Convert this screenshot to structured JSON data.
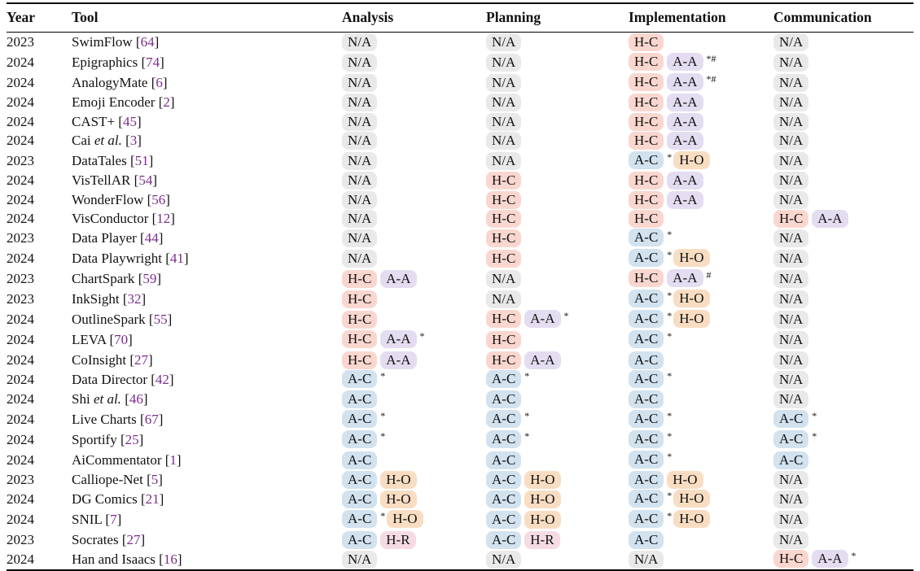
{
  "table": {
    "columns": [
      "Year",
      "Tool",
      "Analysis",
      "Planning",
      "Implementation",
      "Communication"
    ],
    "badge_colors": {
      "N/A": "#e9e9e9",
      "H-C": "#f9d7cf",
      "A-A": "#e4dcf0",
      "A-C": "#d2e2ee",
      "H-O": "#f8ddc2",
      "H-R": "#f6dbe4"
    },
    "citation_color": "#7c2d8e",
    "rows": [
      {
        "year": "2023",
        "tool": {
          "text": "SwimFlow",
          "italic": "",
          "cite": "64"
        },
        "analysis": [
          "N/A"
        ],
        "planning": [
          "N/A"
        ],
        "implementation": [
          "H-C"
        ],
        "communication": [
          "N/A"
        ]
      },
      {
        "year": "2024",
        "tool": {
          "text": "Epigraphics",
          "italic": "",
          "cite": "74"
        },
        "analysis": [
          "N/A"
        ],
        "planning": [
          "N/A"
        ],
        "implementation": [
          "H-C",
          "A-A",
          "*#"
        ],
        "communication": [
          "N/A"
        ]
      },
      {
        "year": "2024",
        "tool": {
          "text": "AnalogyMate",
          "italic": "",
          "cite": "6"
        },
        "analysis": [
          "N/A"
        ],
        "planning": [
          "N/A"
        ],
        "implementation": [
          "H-C",
          "A-A",
          "*#"
        ],
        "communication": [
          "N/A"
        ]
      },
      {
        "year": "2024",
        "tool": {
          "text": "Emoji Encoder",
          "italic": "",
          "cite": "2"
        },
        "analysis": [
          "N/A"
        ],
        "planning": [
          "N/A"
        ],
        "implementation": [
          "H-C",
          "A-A"
        ],
        "communication": [
          "N/A"
        ]
      },
      {
        "year": "2024",
        "tool": {
          "text": "CAST+",
          "italic": "",
          "cite": "45"
        },
        "analysis": [
          "N/A"
        ],
        "planning": [
          "N/A"
        ],
        "implementation": [
          "H-C",
          "A-A"
        ],
        "communication": [
          "N/A"
        ]
      },
      {
        "year": "2024",
        "tool": {
          "text": "Cai ",
          "italic": "et al.",
          "cite": "3"
        },
        "analysis": [
          "N/A"
        ],
        "planning": [
          "N/A"
        ],
        "implementation": [
          "H-C",
          "A-A"
        ],
        "communication": [
          "N/A"
        ]
      },
      {
        "year": "2023",
        "tool": {
          "text": "DataTales",
          "italic": "",
          "cite": "51"
        },
        "analysis": [
          "N/A"
        ],
        "planning": [
          "N/A"
        ],
        "implementation": [
          "A-C",
          "*",
          "H-O"
        ],
        "communication": [
          "N/A"
        ]
      },
      {
        "year": "2024",
        "tool": {
          "text": "VisTellAR",
          "italic": "",
          "cite": "54"
        },
        "analysis": [
          "N/A"
        ],
        "planning": [
          "H-C"
        ],
        "implementation": [
          "H-C",
          "A-A"
        ],
        "communication": [
          "N/A"
        ]
      },
      {
        "year": "2024",
        "tool": {
          "text": "WonderFlow",
          "italic": "",
          "cite": "56"
        },
        "analysis": [
          "N/A"
        ],
        "planning": [
          "H-C"
        ],
        "implementation": [
          "H-C",
          "A-A"
        ],
        "communication": [
          "N/A"
        ]
      },
      {
        "year": "2024",
        "tool": {
          "text": "VisConductor",
          "italic": "",
          "cite": "12"
        },
        "analysis": [
          "N/A"
        ],
        "planning": [
          "H-C"
        ],
        "implementation": [
          "H-C"
        ],
        "communication": [
          "H-C",
          "A-A"
        ]
      },
      {
        "year": "2023",
        "tool": {
          "text": "Data Player",
          "italic": "",
          "cite": "44"
        },
        "analysis": [
          "N/A"
        ],
        "planning": [
          "H-C"
        ],
        "implementation": [
          "A-C",
          "*"
        ],
        "communication": [
          "N/A"
        ]
      },
      {
        "year": "2024",
        "tool": {
          "text": "Data Playwright",
          "italic": "",
          "cite": "41"
        },
        "analysis": [
          "N/A"
        ],
        "planning": [
          "H-C"
        ],
        "implementation": [
          "A-C",
          "*",
          "H-O"
        ],
        "communication": [
          "N/A"
        ]
      },
      {
        "year": "2023",
        "tool": {
          "text": "ChartSpark",
          "italic": "",
          "cite": "59"
        },
        "analysis": [
          "H-C",
          "A-A"
        ],
        "planning": [
          "N/A"
        ],
        "implementation": [
          "H-C",
          "A-A",
          "#"
        ],
        "communication": [
          "N/A"
        ]
      },
      {
        "year": "2023",
        "tool": {
          "text": "InkSight",
          "italic": "",
          "cite": "32"
        },
        "analysis": [
          "H-C"
        ],
        "planning": [
          "N/A"
        ],
        "implementation": [
          "A-C",
          "*",
          "H-O"
        ],
        "communication": [
          "N/A"
        ]
      },
      {
        "year": "2024",
        "tool": {
          "text": "OutlineSpark",
          "italic": "",
          "cite": "55"
        },
        "analysis": [
          "H-C"
        ],
        "planning": [
          "H-C",
          "A-A",
          "*"
        ],
        "implementation": [
          "A-C",
          "*",
          "H-O"
        ],
        "communication": [
          "N/A"
        ]
      },
      {
        "year": "2024",
        "tool": {
          "text": "LEVA",
          "italic": "",
          "cite": "70"
        },
        "analysis": [
          "H-C",
          "A-A",
          "*"
        ],
        "planning": [
          "H-C"
        ],
        "implementation": [
          "A-C",
          "*"
        ],
        "communication": [
          "N/A"
        ]
      },
      {
        "year": "2024",
        "tool": {
          "text": "CoInsight",
          "italic": "",
          "cite": "27"
        },
        "analysis": [
          "H-C",
          "A-A"
        ],
        "planning": [
          "H-C",
          "A-A"
        ],
        "implementation": [
          "A-C"
        ],
        "communication": [
          "N/A"
        ]
      },
      {
        "year": "2024",
        "tool": {
          "text": "Data Director",
          "italic": "",
          "cite": "42"
        },
        "analysis": [
          "A-C",
          "*"
        ],
        "planning": [
          "A-C",
          "*"
        ],
        "implementation": [
          "A-C",
          "*"
        ],
        "communication": [
          "N/A"
        ]
      },
      {
        "year": "2024",
        "tool": {
          "text": "Shi ",
          "italic": "et al.",
          "cite": "46"
        },
        "analysis": [
          "A-C"
        ],
        "planning": [
          "A-C"
        ],
        "implementation": [
          "A-C"
        ],
        "communication": [
          "N/A"
        ]
      },
      {
        "year": "2024",
        "tool": {
          "text": "Live Charts",
          "italic": "",
          "cite": "67"
        },
        "analysis": [
          "A-C",
          "*"
        ],
        "planning": [
          "A-C",
          "*"
        ],
        "implementation": [
          "A-C",
          "*"
        ],
        "communication": [
          "A-C",
          "*"
        ]
      },
      {
        "year": "2024",
        "tool": {
          "text": "Sportify",
          "italic": "",
          "cite": "25"
        },
        "analysis": [
          "A-C",
          "*"
        ],
        "planning": [
          "A-C",
          "*"
        ],
        "implementation": [
          "A-C",
          "*"
        ],
        "communication": [
          "A-C",
          "*"
        ]
      },
      {
        "year": "2024",
        "tool": {
          "text": "AiCommentator",
          "italic": "",
          "cite": "1"
        },
        "analysis": [
          "A-C"
        ],
        "planning": [
          "A-C"
        ],
        "implementation": [
          "A-C",
          "*"
        ],
        "communication": [
          "A-C"
        ]
      },
      {
        "year": "2023",
        "tool": {
          "text": "Calliope-Net",
          "italic": "",
          "cite": "5"
        },
        "analysis": [
          "A-C",
          "H-O"
        ],
        "planning": [
          "A-C",
          "H-O"
        ],
        "implementation": [
          "A-C",
          "H-O"
        ],
        "communication": [
          "N/A"
        ]
      },
      {
        "year": "2024",
        "tool": {
          "text": "DG Comics",
          "italic": "",
          "cite": "21"
        },
        "analysis": [
          "A-C",
          "H-O"
        ],
        "planning": [
          "A-C",
          "H-O"
        ],
        "implementation": [
          "A-C",
          "*",
          "H-O"
        ],
        "communication": [
          "N/A"
        ]
      },
      {
        "year": "2024",
        "tool": {
          "text": "SNIL",
          "italic": "",
          "cite": "7"
        },
        "analysis": [
          "A-C",
          "*",
          "H-O"
        ],
        "planning": [
          "A-C",
          "H-O"
        ],
        "implementation": [
          "A-C",
          "*",
          "H-O"
        ],
        "communication": [
          "N/A"
        ]
      },
      {
        "year": "2023",
        "tool": {
          "text": "Socrates",
          "italic": "",
          "cite": "27"
        },
        "analysis": [
          "A-C",
          "H-R"
        ],
        "planning": [
          "A-C",
          "H-R"
        ],
        "implementation": [
          "A-C"
        ],
        "communication": [
          "N/A"
        ]
      },
      {
        "year": "2024",
        "tool": {
          "text": "Han and Isaacs",
          "italic": "",
          "cite": "16"
        },
        "analysis": [
          "N/A"
        ],
        "planning": [
          "N/A"
        ],
        "implementation": [
          "N/A"
        ],
        "communication": [
          "H-C",
          "A-A",
          "*"
        ]
      }
    ]
  }
}
